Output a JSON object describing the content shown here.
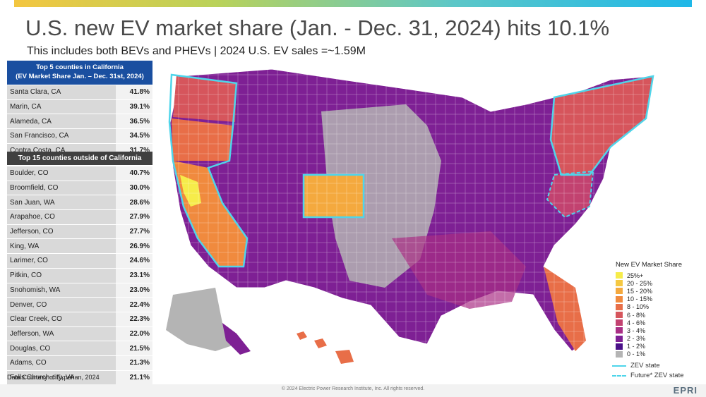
{
  "title": "U.S. new EV market share (Jan. - Dec. 31, 2024) hits 10.1%",
  "subtitle": "This includes both BEVs and PHEVs  | 2024 U.S. EV sales =~1.59M",
  "ca_table": {
    "header_line1": "Top 5 counties in California",
    "header_line2": "(EV Market Share Jan. – Dec. 31st, 2024)",
    "rows": [
      {
        "name": "Santa Clara, CA",
        "value": "41.8%"
      },
      {
        "name": "Marin, CA",
        "value": "39.1%"
      },
      {
        "name": "Alameda, CA",
        "value": "36.5%"
      },
      {
        "name": "San Francisco, CA",
        "value": "34.5%"
      },
      {
        "name": "Contra Costa, CA",
        "value": "31.7%"
      }
    ]
  },
  "other_table": {
    "header": "Top 15 counties outside of California",
    "rows": [
      {
        "name": "Boulder, CO",
        "value": "40.7%"
      },
      {
        "name": "Broomfield, CO",
        "value": "30.0%"
      },
      {
        "name": "San Juan, WA",
        "value": "28.6%"
      },
      {
        "name": "Arapahoe, CO",
        "value": "27.9%"
      },
      {
        "name": "Jefferson, CO",
        "value": "27.7%"
      },
      {
        "name": "King, WA",
        "value": "26.9%"
      },
      {
        "name": "Larimer, CO",
        "value": "24.6%"
      },
      {
        "name": "Pitkin, CO",
        "value": "23.1%"
      },
      {
        "name": "Snohomish, WA",
        "value": "23.0%"
      },
      {
        "name": "Denver, CO",
        "value": "22.4%"
      },
      {
        "name": "Clear Creek, CO",
        "value": "22.3%"
      },
      {
        "name": "Jefferson, WA",
        "value": "22.0%"
      },
      {
        "name": "Douglas, CO",
        "value": "21.5%"
      },
      {
        "name": "Adams, CO",
        "value": "21.3%"
      },
      {
        "name": "Falls Church city, VA",
        "value": "21.1%"
      }
    ]
  },
  "credit": "Data Courtesy of Experian, 2024",
  "copyright": "© 2024 Electric Power Research Institute, Inc. All rights reserved.",
  "logo": "EPRI",
  "legend": {
    "title": "New EV Market Share",
    "items": [
      {
        "label": "25%+",
        "color": "#f6ec4a"
      },
      {
        "label": "20 - 25%",
        "color": "#f5c842"
      },
      {
        "label": "15 - 20%",
        "color": "#f4a93e"
      },
      {
        "label": "10 - 15%",
        "color": "#f08a3e"
      },
      {
        "label": "8 - 10%",
        "color": "#e86e48"
      },
      {
        "label": "6 - 8%",
        "color": "#d6555c"
      },
      {
        "label": "4 - 6%",
        "color": "#c24270"
      },
      {
        "label": "3 - 4%",
        "color": "#a92f85"
      },
      {
        "label": "2 - 3%",
        "color": "#7e2094"
      },
      {
        "label": "1 - 2%",
        "color": "#4a1088"
      },
      {
        "label": "0 - 1%",
        "color": "#b4b4b4"
      }
    ],
    "zev_state": "ZEV state",
    "future_zev_state": "Future* ZEV state",
    "zev_color": "#4fd5ea"
  }
}
